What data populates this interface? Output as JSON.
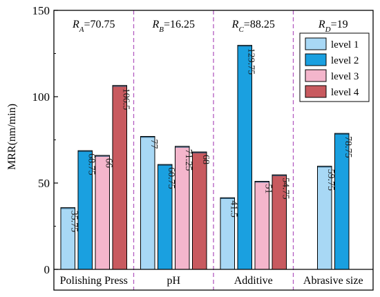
{
  "chart_data": {
    "type": "bar",
    "ylabel": "MRR(nm/min)",
    "ylim": [
      0,
      150
    ],
    "yticks": [
      0,
      50,
      100,
      150
    ],
    "categories": [
      "Polishing Press",
      "pH",
      "Additive",
      "Abrasive size"
    ],
    "series": [
      {
        "name": "level 1",
        "color": "#a8d8f5",
        "values": [
          35.75,
          77,
          41.5,
          59.75
        ]
      },
      {
        "name": "level 2",
        "color": "#1aa0e0",
        "values": [
          68.75,
          60.75,
          129.75,
          78.75
        ]
      },
      {
        "name": "level 3",
        "color": "#f4b6cc",
        "values": [
          66,
          71.25,
          51,
          null
        ]
      },
      {
        "name": "level 4",
        "color": "#c85a5f",
        "values": [
          106.5,
          68,
          54.75,
          null
        ]
      }
    ],
    "value_labels": [
      [
        "35.75",
        "68.75",
        "66",
        "106.5"
      ],
      [
        "77",
        "60.75",
        "71.25",
        "68"
      ],
      [
        "41.5",
        "129.75",
        "51",
        "54.75"
      ],
      [
        "59.75",
        "78.75",
        null,
        null
      ]
    ],
    "ranges": [
      {
        "prefix": "R",
        "subscript": "A",
        "value": "=70.75"
      },
      {
        "prefix": "R",
        "subscript": "B",
        "value": "=16.25"
      },
      {
        "prefix": "R",
        "subscript": "C",
        "value": "=88.25"
      },
      {
        "prefix": "R",
        "subscript": "D",
        "value": "=19"
      }
    ],
    "legend_position": "top-right",
    "grid": false,
    "separator_color": "#b25bc0"
  }
}
